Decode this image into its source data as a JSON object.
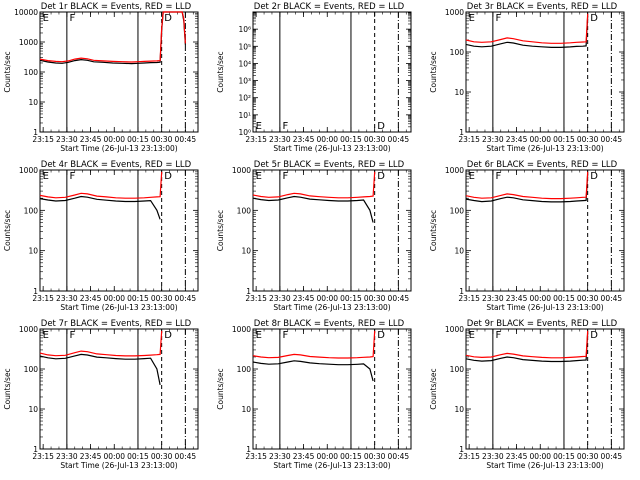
{
  "chart_data": {
    "type": "line",
    "x_axis": {
      "label": "Start Time (26-Jul-13 23:13:00)",
      "tick_labels": [
        "23:15",
        "23:30",
        "23:45",
        "00:00",
        "00:15",
        "00:30",
        "00:45"
      ],
      "tick_minutes": [
        2,
        17,
        32,
        47,
        62,
        77,
        92
      ],
      "range_minutes": [
        0,
        100
      ]
    },
    "y_axis": {
      "label": "Counts/sec",
      "scale": "log"
    },
    "series_colors": {
      "Events": "#000000",
      "LLD": "#ff0000"
    },
    "markers": {
      "solid_minutes": [
        17,
        62
      ],
      "dashed_minutes": [
        77
      ],
      "dashdot_minutes": [
        92
      ]
    },
    "annotations": [
      {
        "text": "E",
        "minute": 1
      },
      {
        "text": "F",
        "minute": 18
      },
      {
        "text": "D",
        "minute": 78
      }
    ],
    "panels": [
      {
        "title": "Det 1r BLACK = Events, RED = LLD",
        "ylim": [
          1,
          10000
        ],
        "ytick_labels": [
          "1",
          "10",
          "100",
          "1000",
          "10000"
        ],
        "lld": [
          [
            0,
            270
          ],
          [
            5,
            240
          ],
          [
            10,
            225
          ],
          [
            14,
            220
          ],
          [
            18,
            235
          ],
          [
            22,
            270
          ],
          [
            26,
            290
          ],
          [
            30,
            275
          ],
          [
            34,
            245
          ],
          [
            40,
            235
          ],
          [
            46,
            225
          ],
          [
            52,
            220
          ],
          [
            58,
            215
          ],
          [
            62,
            220
          ],
          [
            66,
            225
          ],
          [
            70,
            230
          ],
          [
            74,
            235
          ],
          [
            76,
            240
          ],
          [
            77,
            3000
          ],
          [
            78,
            10000
          ],
          [
            90,
            10000
          ],
          [
            91,
            6000
          ],
          [
            92,
            900
          ]
        ],
        "events": [
          [
            0,
            245
          ],
          [
            5,
            215
          ],
          [
            10,
            200
          ],
          [
            14,
            195
          ],
          [
            18,
            210
          ],
          [
            22,
            240
          ],
          [
            26,
            260
          ],
          [
            30,
            245
          ],
          [
            34,
            218
          ],
          [
            40,
            210
          ],
          [
            46,
            200
          ],
          [
            52,
            195
          ],
          [
            58,
            190
          ],
          [
            62,
            195
          ],
          [
            66,
            200
          ],
          [
            70,
            205
          ],
          [
            74,
            208
          ],
          [
            76,
            212
          ],
          [
            77,
            2500
          ],
          [
            78,
            10000
          ],
          [
            90,
            10000
          ],
          [
            91,
            5000
          ],
          [
            92,
            800
          ]
        ]
      },
      {
        "title": "Det 2r BLACK = Events, RED = LLD",
        "ylim": [
          1,
          10000000
        ],
        "ytick_labels": [
          "10⁰",
          "10¹",
          "10²",
          "10³",
          "10⁴",
          "10⁵",
          "10⁶"
        ],
        "lld": [],
        "events": []
      },
      {
        "title": "Det 3r BLACK = Events, RED = LLD",
        "ylim": [
          1,
          1000
        ],
        "ytick_labels": [
          "1",
          "10",
          "100",
          "1000"
        ],
        "lld": [
          [
            0,
            200
          ],
          [
            5,
            180
          ],
          [
            10,
            175
          ],
          [
            16,
            180
          ],
          [
            22,
            205
          ],
          [
            26,
            225
          ],
          [
            30,
            215
          ],
          [
            36,
            190
          ],
          [
            42,
            180
          ],
          [
            48,
            170
          ],
          [
            54,
            165
          ],
          [
            60,
            165
          ],
          [
            66,
            170
          ],
          [
            70,
            175
          ],
          [
            74,
            178
          ],
          [
            76,
            180
          ],
          [
            77,
            900
          ]
        ],
        "events": [
          [
            0,
            155
          ],
          [
            5,
            140
          ],
          [
            10,
            135
          ],
          [
            16,
            140
          ],
          [
            22,
            160
          ],
          [
            26,
            175
          ],
          [
            30,
            168
          ],
          [
            36,
            148
          ],
          [
            42,
            140
          ],
          [
            48,
            135
          ],
          [
            54,
            130
          ],
          [
            60,
            130
          ],
          [
            66,
            134
          ],
          [
            70,
            138
          ],
          [
            74,
            140
          ],
          [
            76,
            142
          ],
          [
            77,
            800
          ]
        ]
      },
      {
        "title": "Det 4r BLACK = Events, RED = LLD",
        "ylim": [
          1,
          1000
        ],
        "ytick_labels": [
          "1",
          "10",
          "100",
          "1000"
        ],
        "lld": [
          [
            0,
            235
          ],
          [
            5,
            215
          ],
          [
            10,
            205
          ],
          [
            16,
            210
          ],
          [
            22,
            240
          ],
          [
            26,
            265
          ],
          [
            30,
            255
          ],
          [
            36,
            225
          ],
          [
            42,
            215
          ],
          [
            48,
            205
          ],
          [
            54,
            200
          ],
          [
            60,
            200
          ],
          [
            66,
            205
          ],
          [
            70,
            210
          ],
          [
            74,
            215
          ],
          [
            76,
            218
          ],
          [
            77,
            900
          ]
        ],
        "events": [
          [
            0,
            195
          ],
          [
            5,
            180
          ],
          [
            10,
            170
          ],
          [
            16,
            175
          ],
          [
            22,
            200
          ],
          [
            26,
            220
          ],
          [
            30,
            212
          ],
          [
            36,
            188
          ],
          [
            42,
            178
          ],
          [
            48,
            170
          ],
          [
            54,
            166
          ],
          [
            60,
            166
          ],
          [
            66,
            170
          ],
          [
            70,
            174
          ],
          [
            74,
            100
          ],
          [
            76,
            60
          ]
        ]
      },
      {
        "title": "Det 5r BLACK = Events, RED = LLD",
        "ylim": [
          1,
          1000
        ],
        "ytick_labels": [
          "1",
          "10",
          "100",
          "1000"
        ],
        "lld": [
          [
            0,
            240
          ],
          [
            5,
            220
          ],
          [
            10,
            210
          ],
          [
            16,
            215
          ],
          [
            22,
            245
          ],
          [
            26,
            265
          ],
          [
            30,
            255
          ],
          [
            36,
            228
          ],
          [
            42,
            218
          ],
          [
            48,
            210
          ],
          [
            54,
            205
          ],
          [
            60,
            205
          ],
          [
            66,
            210
          ],
          [
            70,
            215
          ],
          [
            74,
            220
          ],
          [
            76,
            225
          ],
          [
            77,
            900
          ]
        ],
        "events": [
          [
            0,
            200
          ],
          [
            5,
            185
          ],
          [
            10,
            175
          ],
          [
            16,
            180
          ],
          [
            22,
            205
          ],
          [
            26,
            220
          ],
          [
            30,
            212
          ],
          [
            36,
            190
          ],
          [
            42,
            182
          ],
          [
            48,
            175
          ],
          [
            54,
            170
          ],
          [
            60,
            170
          ],
          [
            66,
            175
          ],
          [
            70,
            180
          ],
          [
            74,
            100
          ],
          [
            76,
            50
          ]
        ]
      },
      {
        "title": "Det 6r BLACK = Events, RED = LLD",
        "ylim": [
          1,
          1000
        ],
        "ytick_labels": [
          "1",
          "10",
          "100",
          "1000"
        ],
        "lld": [
          [
            0,
            230
          ],
          [
            5,
            210
          ],
          [
            10,
            200
          ],
          [
            16,
            205
          ],
          [
            22,
            235
          ],
          [
            26,
            255
          ],
          [
            30,
            245
          ],
          [
            36,
            220
          ],
          [
            42,
            210
          ],
          [
            48,
            200
          ],
          [
            54,
            195
          ],
          [
            60,
            195
          ],
          [
            66,
            200
          ],
          [
            70,
            205
          ],
          [
            74,
            210
          ],
          [
            76,
            212
          ],
          [
            77,
            900
          ]
        ],
        "events": [
          [
            0,
            190
          ],
          [
            5,
            175
          ],
          [
            10,
            165
          ],
          [
            16,
            170
          ],
          [
            22,
            195
          ],
          [
            26,
            212
          ],
          [
            30,
            205
          ],
          [
            36,
            182
          ],
          [
            42,
            174
          ],
          [
            48,
            166
          ],
          [
            54,
            162
          ],
          [
            60,
            162
          ],
          [
            66,
            166
          ],
          [
            70,
            170
          ],
          [
            74,
            174
          ],
          [
            76,
            176
          ],
          [
            77,
            800
          ]
        ]
      },
      {
        "title": "Det 7r BLACK = Events, RED = LLD",
        "ylim": [
          1,
          1000
        ],
        "ytick_labels": [
          "1",
          "10",
          "100",
          "1000"
        ],
        "lld": [
          [
            0,
            250
          ],
          [
            5,
            225
          ],
          [
            10,
            215
          ],
          [
            16,
            220
          ],
          [
            22,
            255
          ],
          [
            26,
            280
          ],
          [
            30,
            270
          ],
          [
            36,
            238
          ],
          [
            42,
            228
          ],
          [
            48,
            218
          ],
          [
            54,
            212
          ],
          [
            60,
            212
          ],
          [
            66,
            218
          ],
          [
            70,
            222
          ],
          [
            74,
            228
          ],
          [
            76,
            232
          ],
          [
            77,
            900
          ]
        ],
        "events": [
          [
            0,
            210
          ],
          [
            5,
            190
          ],
          [
            10,
            180
          ],
          [
            16,
            185
          ],
          [
            22,
            212
          ],
          [
            26,
            232
          ],
          [
            30,
            224
          ],
          [
            36,
            198
          ],
          [
            42,
            190
          ],
          [
            48,
            182
          ],
          [
            54,
            176
          ],
          [
            60,
            176
          ],
          [
            66,
            182
          ],
          [
            70,
            186
          ],
          [
            74,
            100
          ],
          [
            76,
            40
          ]
        ]
      },
      {
        "title": "Det 8r BLACK = Events, RED = LLD",
        "ylim": [
          1,
          1000
        ],
        "ytick_labels": [
          "1",
          "10",
          "100",
          "1000"
        ],
        "lld": [
          [
            0,
            215
          ],
          [
            5,
            200
          ],
          [
            10,
            192
          ],
          [
            16,
            195
          ],
          [
            22,
            218
          ],
          [
            26,
            232
          ],
          [
            30,
            225
          ],
          [
            36,
            205
          ],
          [
            42,
            198
          ],
          [
            48,
            192
          ],
          [
            54,
            188
          ],
          [
            60,
            188
          ],
          [
            66,
            192
          ],
          [
            70,
            196
          ],
          [
            74,
            200
          ],
          [
            76,
            204
          ],
          [
            77,
            900
          ]
        ],
        "events": [
          [
            0,
            150
          ],
          [
            5,
            138
          ],
          [
            10,
            132
          ],
          [
            16,
            135
          ],
          [
            22,
            150
          ],
          [
            26,
            160
          ],
          [
            30,
            155
          ],
          [
            36,
            142
          ],
          [
            42,
            136
          ],
          [
            48,
            132
          ],
          [
            54,
            128
          ],
          [
            60,
            128
          ],
          [
            66,
            131
          ],
          [
            70,
            134
          ],
          [
            74,
            100
          ],
          [
            76,
            50
          ]
        ]
      },
      {
        "title": "Det 9r BLACK = Events, RED = LLD",
        "ylim": [
          1,
          1000
        ],
        "ytick_labels": [
          "1",
          "10",
          "100",
          "1000"
        ],
        "lld": [
          [
            0,
            220
          ],
          [
            5,
            202
          ],
          [
            10,
            195
          ],
          [
            16,
            200
          ],
          [
            22,
            228
          ],
          [
            26,
            245
          ],
          [
            30,
            236
          ],
          [
            36,
            212
          ],
          [
            42,
            203
          ],
          [
            48,
            195
          ],
          [
            54,
            190
          ],
          [
            60,
            190
          ],
          [
            66,
            195
          ],
          [
            70,
            200
          ],
          [
            74,
            205
          ],
          [
            76,
            208
          ],
          [
            77,
            900
          ]
        ],
        "events": [
          [
            0,
            180
          ],
          [
            5,
            165
          ],
          [
            10,
            158
          ],
          [
            16,
            162
          ],
          [
            22,
            185
          ],
          [
            26,
            200
          ],
          [
            30,
            192
          ],
          [
            36,
            172
          ],
          [
            42,
            164
          ],
          [
            48,
            158
          ],
          [
            54,
            154
          ],
          [
            60,
            154
          ],
          [
            66,
            158
          ],
          [
            70,
            162
          ],
          [
            74,
            166
          ],
          [
            76,
            168
          ],
          [
            77,
            800
          ]
        ]
      }
    ]
  }
}
